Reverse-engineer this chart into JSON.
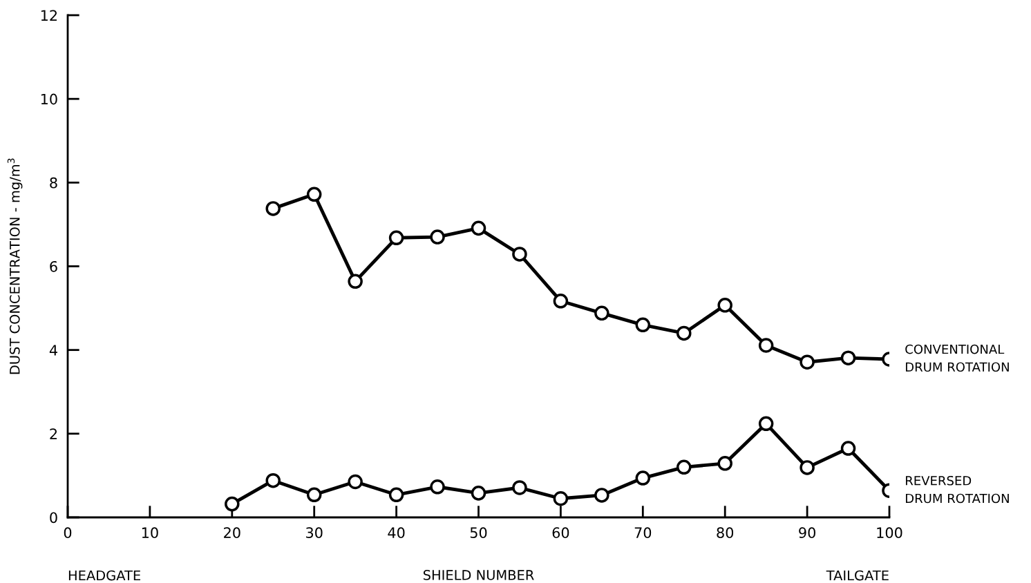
{
  "chart_data": {
    "type": "line",
    "xlabel": "SHIELD NUMBER",
    "ylabel": "DUST CONCENTRATION - mg/m$^{3}$",
    "annotations": [
      "HEADGATE",
      "TAILGATE"
    ],
    "x": [
      20,
      25,
      30,
      35,
      40,
      45,
      50,
      55,
      60,
      65,
      70,
      75,
      80,
      85,
      90,
      95,
      100
    ],
    "series": [
      {
        "name": "CONVENTIONAL\nDRUM ROTATION",
        "color": "#000000",
        "values": [
          null,
          7.38,
          7.72,
          5.64,
          6.68,
          6.7,
          6.91,
          6.29,
          5.17,
          4.88,
          4.6,
          4.4,
          5.07,
          4.11,
          3.71,
          3.81,
          3.78
        ]
      },
      {
        "name": "REVERSED\nDRUM ROTATION",
        "color": "#000000",
        "values": [
          0.32,
          0.88,
          0.54,
          0.85,
          0.54,
          0.73,
          0.58,
          0.71,
          0.45,
          0.53,
          0.94,
          1.2,
          1.29,
          2.24,
          1.19,
          1.65,
          0.64
        ]
      }
    ],
    "xlim": [
      0,
      100
    ],
    "ylim": [
      0,
      12
    ],
    "xticks": [
      0,
      10,
      20,
      30,
      40,
      50,
      60,
      70,
      80,
      90,
      100
    ],
    "yticks": [
      0,
      2,
      4,
      6,
      8,
      10,
      12
    ],
    "grid": false,
    "legend": false,
    "marker": "circle",
    "line_style": "solid"
  }
}
